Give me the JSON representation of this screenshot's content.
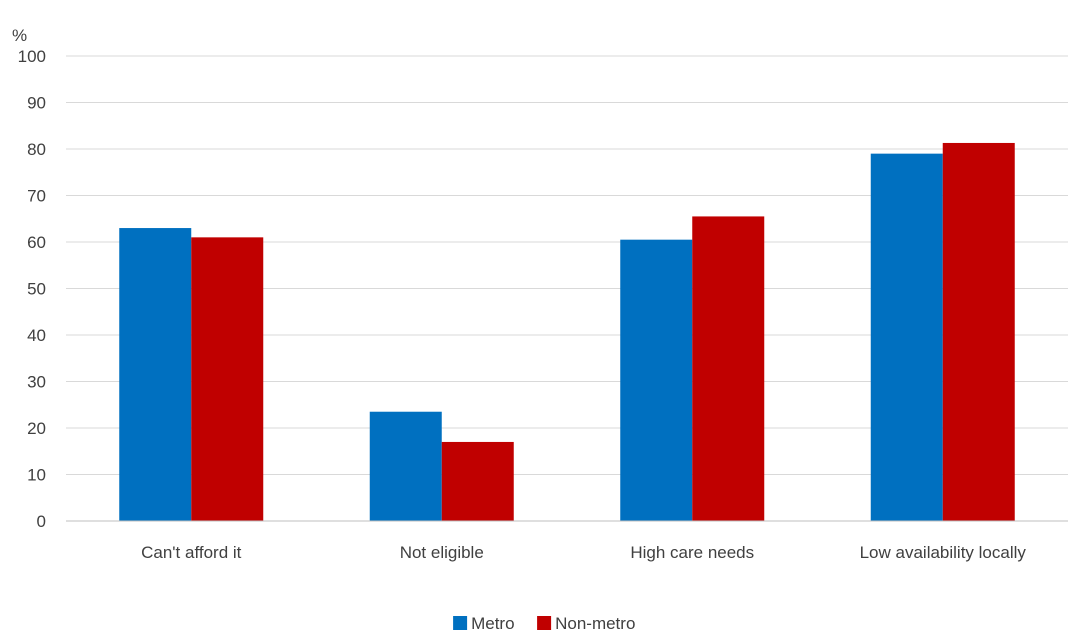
{
  "chart_data": {
    "type": "bar",
    "ylabel": "%",
    "ylim": [
      0,
      100
    ],
    "yticks": [
      0,
      10,
      20,
      30,
      40,
      50,
      60,
      70,
      80,
      90,
      100
    ],
    "grid": true,
    "legend_position": "bottom-center",
    "categories": [
      "Can't afford it",
      "Not eligible",
      "High care needs",
      "Low availability locally"
    ],
    "series": [
      {
        "name": "Metro",
        "color": "#0070c0",
        "values": [
          63,
          23.5,
          60.5,
          79
        ]
      },
      {
        "name": "Non-metro",
        "color": "#c00000",
        "values": [
          61,
          17,
          65.5,
          81.3
        ]
      }
    ]
  }
}
